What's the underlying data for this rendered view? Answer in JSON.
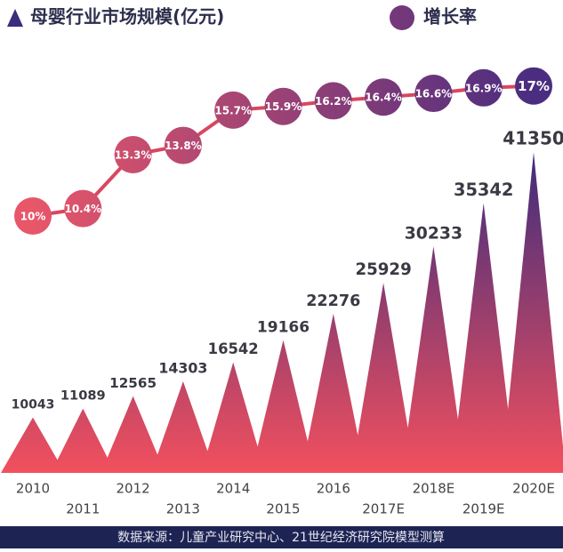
{
  "chart_data": {
    "type": "triangle-line",
    "legend": [
      "母婴行业市场规模(亿元)",
      "增长率"
    ],
    "categories": [
      "2010",
      "2011",
      "2012",
      "2013",
      "2014",
      "2015",
      "2016",
      "2017E",
      "2018E",
      "2019E",
      "2020E"
    ],
    "series": [
      {
        "name": "母婴行业市场规模(亿元)",
        "type": "triangle",
        "colors": [
          "#f2505e",
          "#3b2c7d"
        ],
        "values": [
          10043,
          11089,
          12565,
          14303,
          16542,
          19166,
          22276,
          25929,
          30233,
          35342,
          41350
        ]
      },
      {
        "name": "增长率",
        "type": "line",
        "axis": "y2",
        "color": "#d9475f",
        "colors": [
          "#e8566a",
          "#4a2d80"
        ],
        "values": [
          10,
          10.4,
          13.3,
          13.8,
          15.7,
          15.9,
          16.2,
          16.4,
          16.6,
          16.9,
          17
        ],
        "value_labels": [
          "10%",
          "10.4%",
          "13.3%",
          "13.8%",
          "15.7%",
          "15.9%",
          "16.2%",
          "16.4%",
          "16.6%",
          "16.9%",
          "17%"
        ]
      }
    ],
    "ylim": [
      3500,
      42000
    ],
    "y2lim": [
      0,
      20
    ],
    "source": "数据来源：儿童产业研究中心、21世纪经济研究院模型测算"
  }
}
